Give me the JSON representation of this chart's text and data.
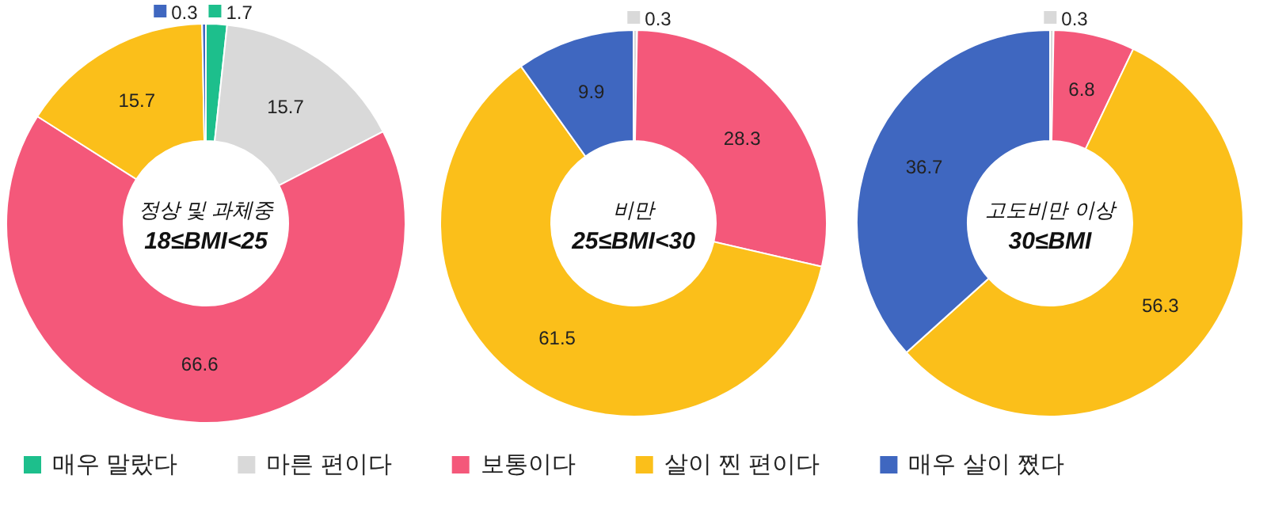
{
  "chart_data": [
    {
      "type": "donut",
      "title": "정상 및 과체중",
      "subtitle": "18≤BMI<25",
      "categories": [
        "매우 말랐다",
        "마른 편이다",
        "보통이다",
        "살이 찐 편이다",
        "매우 살이 쪘다"
      ],
      "values": [
        1.7,
        15.7,
        66.6,
        15.7,
        0.3
      ],
      "colors": [
        "#1dbf8c",
        "#d9d9d9",
        "#f4587a",
        "#fbbf1a",
        "#3f67c0"
      ],
      "data_labels": true,
      "legend": "bottom"
    },
    {
      "type": "donut",
      "title": "비만",
      "subtitle": "25≤BMI<30",
      "categories": [
        null,
        null,
        null,
        null
      ],
      "values": [
        0.3,
        28.3,
        61.5,
        9.9
      ],
      "colors": [
        "#d9d9d9",
        "#f4587a",
        "#fbbf1a",
        "#3f67c0"
      ],
      "data_labels": true
    },
    {
      "type": "donut",
      "title": "고도비만 이상",
      "subtitle": "30≤BMI",
      "categories": [
        null,
        null,
        null,
        null
      ],
      "values": [
        0.3,
        6.8,
        56.3,
        36.7
      ],
      "colors": [
        "#d9d9d9",
        "#f4587a",
        "#fbbf1a",
        "#3f67c0"
      ],
      "data_labels": true
    }
  ]
}
